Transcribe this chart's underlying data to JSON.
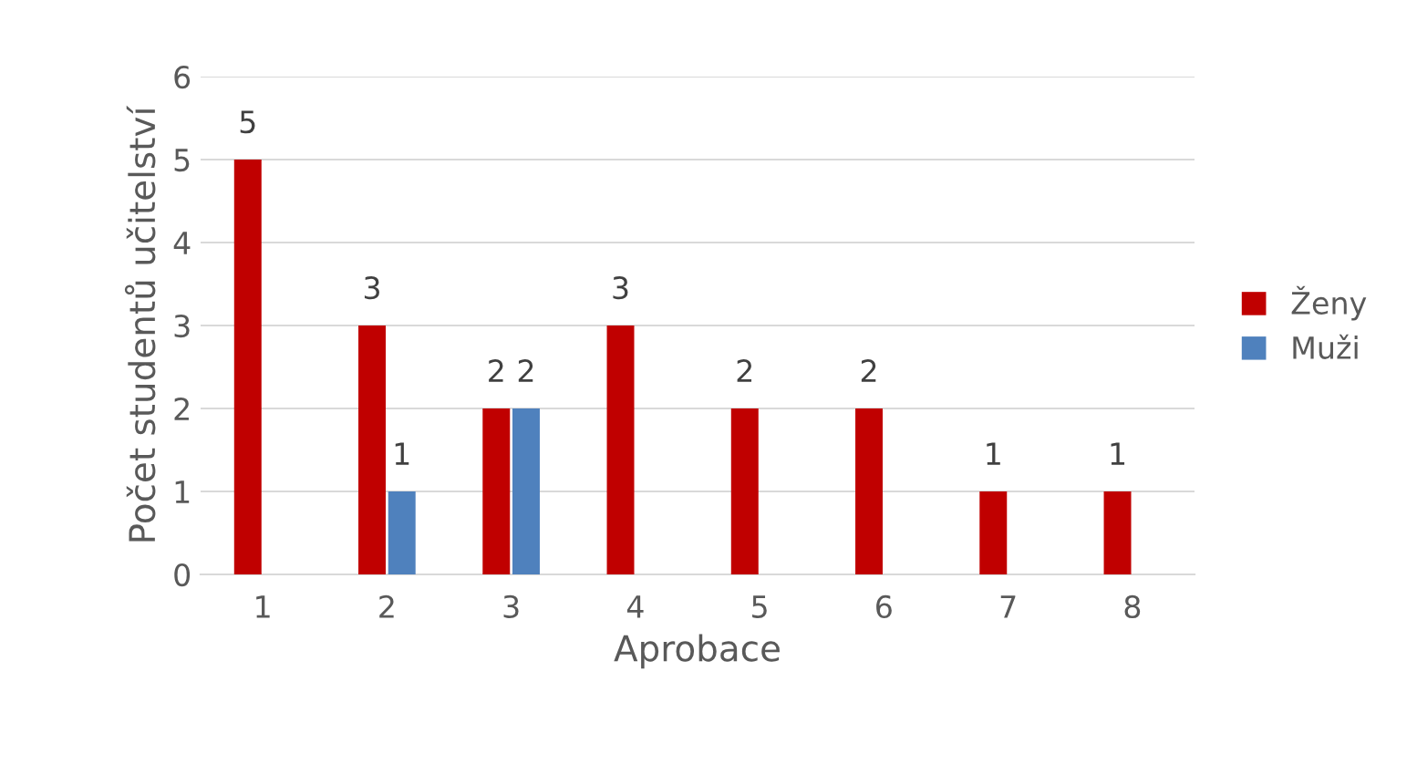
{
  "chart_data": {
    "type": "bar",
    "xlabel": "Aprobace",
    "ylabel": "Počet studentů učitelství",
    "categories": [
      "1",
      "2",
      "3",
      "4",
      "5",
      "6",
      "7",
      "8"
    ],
    "series": [
      {
        "name": "Ženy",
        "color": "#c00000",
        "values": [
          5,
          3,
          2,
          3,
          2,
          2,
          1,
          1
        ]
      },
      {
        "name": "Muži",
        "color": "#4f81bd",
        "values": [
          null,
          1,
          2,
          null,
          null,
          null,
          null,
          null
        ]
      }
    ],
    "ylim": [
      0,
      6
    ],
    "yticks": [
      0,
      1,
      2,
      3,
      4,
      5,
      6
    ],
    "grid": "y",
    "legend": "right",
    "data_labels": true
  }
}
